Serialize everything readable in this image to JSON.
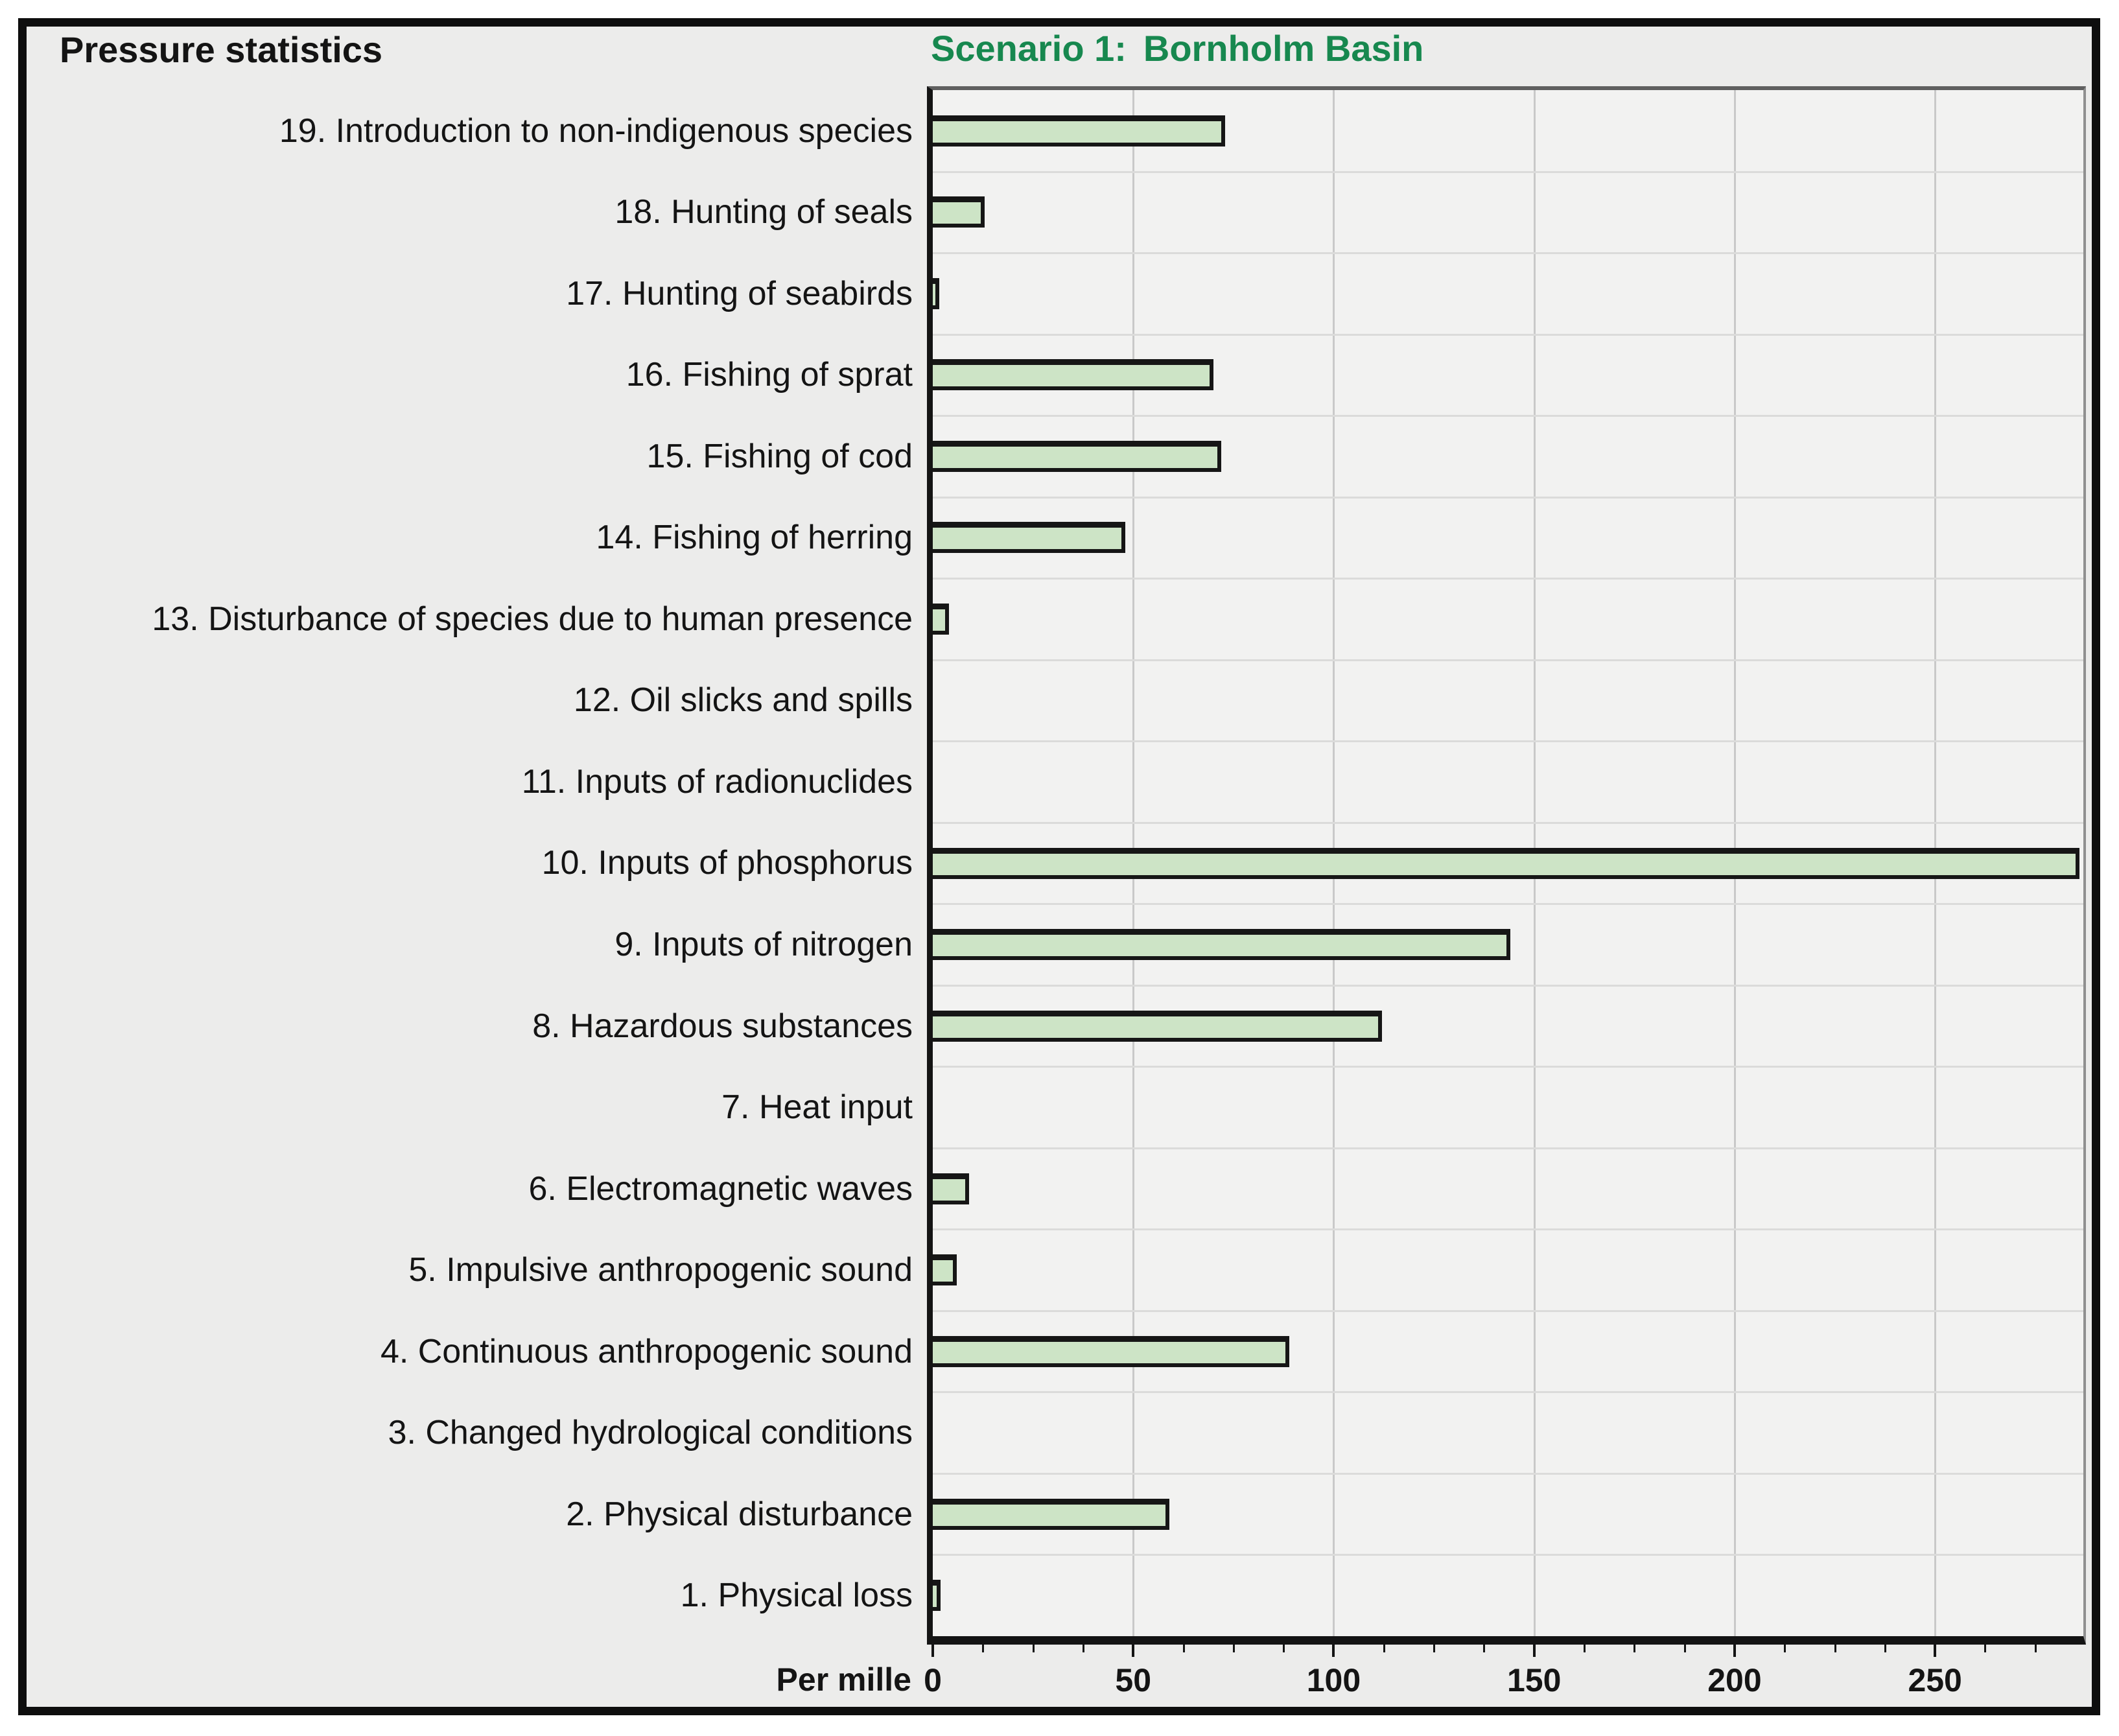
{
  "figure": {
    "title": "Pressure statistics",
    "scenario": {
      "label": "Scenario 1:",
      "name": "Bornholm Basin"
    },
    "axis_unit_label": "Per mille"
  },
  "colors": {
    "scenario_green": "#17884f",
    "bar_fill": "#cde4c6",
    "bar_border": "#161616",
    "frame_background": "#ececeb",
    "plot_background": "#f2f2f1",
    "vertical_grid": "#c9c9c9",
    "row_grid": "#dbdbda",
    "text": "#141414"
  },
  "chart_data": {
    "type": "bar",
    "orientation": "horizontal",
    "title": "Scenario 1: Bornholm Basin",
    "panel_title": "Pressure statistics",
    "xlabel": "Per mille",
    "categories": [
      "19. Introduction to non-indigenous species",
      "18. Hunting of seals",
      "17. Hunting of seabirds",
      "16. Fishing of sprat",
      "15. Fishing of cod",
      "14. Fishing of herring",
      "13. Disturbance of species due to human presence",
      "12. Oil slicks and spills",
      "11. Inputs of radionuclides",
      "10. Inputs of phosphorus",
      "9. Inputs of nitrogen",
      "8. Hazardous substances",
      "7. Heat input",
      "6. Electromagnetic waves",
      "5. Impulsive anthropogenic sound",
      "4. Continuous anthropogenic sound",
      "3. Changed hydrological conditions",
      "2. Physical disturbance",
      "1. Physical loss"
    ],
    "values": [
      73,
      13,
      1,
      70,
      72,
      48,
      4,
      0,
      0,
      286,
      144,
      112,
      0,
      9,
      6,
      89,
      0,
      59,
      2
    ],
    "xticks": [
      0,
      50,
      100,
      150,
      200,
      250
    ],
    "xlim": [
      0,
      287
    ],
    "minor_tick_step": 12.5,
    "grid": true,
    "legend": null
  }
}
